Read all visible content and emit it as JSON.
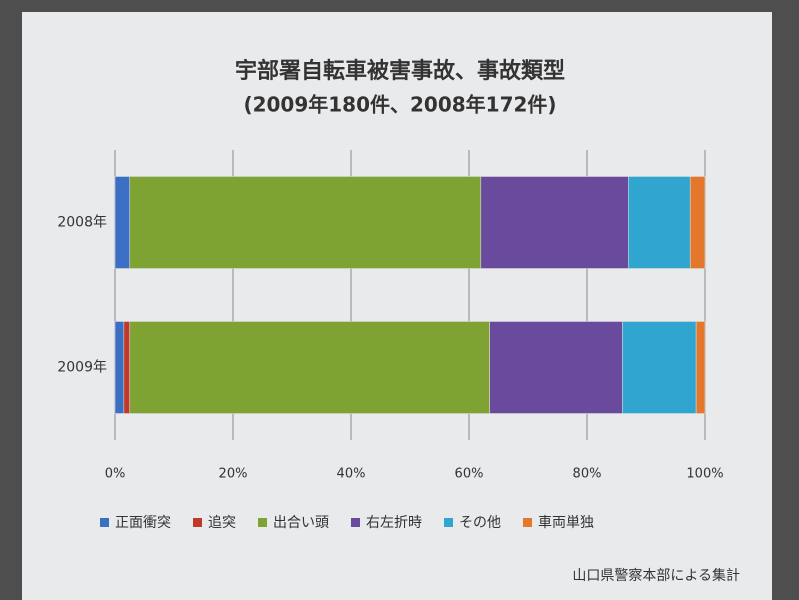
{
  "chart_data": {
    "type": "stacked-bar-horizontal",
    "title": "宇部署自転車被害事故、事故類型",
    "subtitle": "(2009年180件、2008年172件)",
    "categories": [
      "2008年",
      "2009年"
    ],
    "series": [
      {
        "name": "正面衝突",
        "color": "#3a6fc4",
        "values": [
          2.5,
          1.5
        ]
      },
      {
        "name": "追突",
        "color": "#c0392b",
        "values": [
          0,
          1
        ]
      },
      {
        "name": "出合い頭",
        "color": "#7ea332",
        "values": [
          59.5,
          61
        ]
      },
      {
        "name": "右左折時",
        "color": "#6a4a9c",
        "values": [
          25,
          22.5
        ]
      },
      {
        "name": "その他",
        "color": "#30a5cf",
        "values": [
          10.5,
          12.5
        ]
      },
      {
        "name": "車両単独",
        "color": "#e3782c",
        "values": [
          2.5,
          1.5
        ]
      }
    ],
    "xlim": [
      0,
      100
    ],
    "xticks": [
      {
        "value": 0,
        "label": "0%"
      },
      {
        "value": 20,
        "label": "20%"
      },
      {
        "value": 40,
        "label": "40%"
      },
      {
        "value": 60,
        "label": "60%"
      },
      {
        "value": 80,
        "label": "80%"
      },
      {
        "value": 100,
        "label": "100%"
      }
    ],
    "grid": true,
    "legend": "bottom",
    "source": "山口県警察本部による集計"
  }
}
